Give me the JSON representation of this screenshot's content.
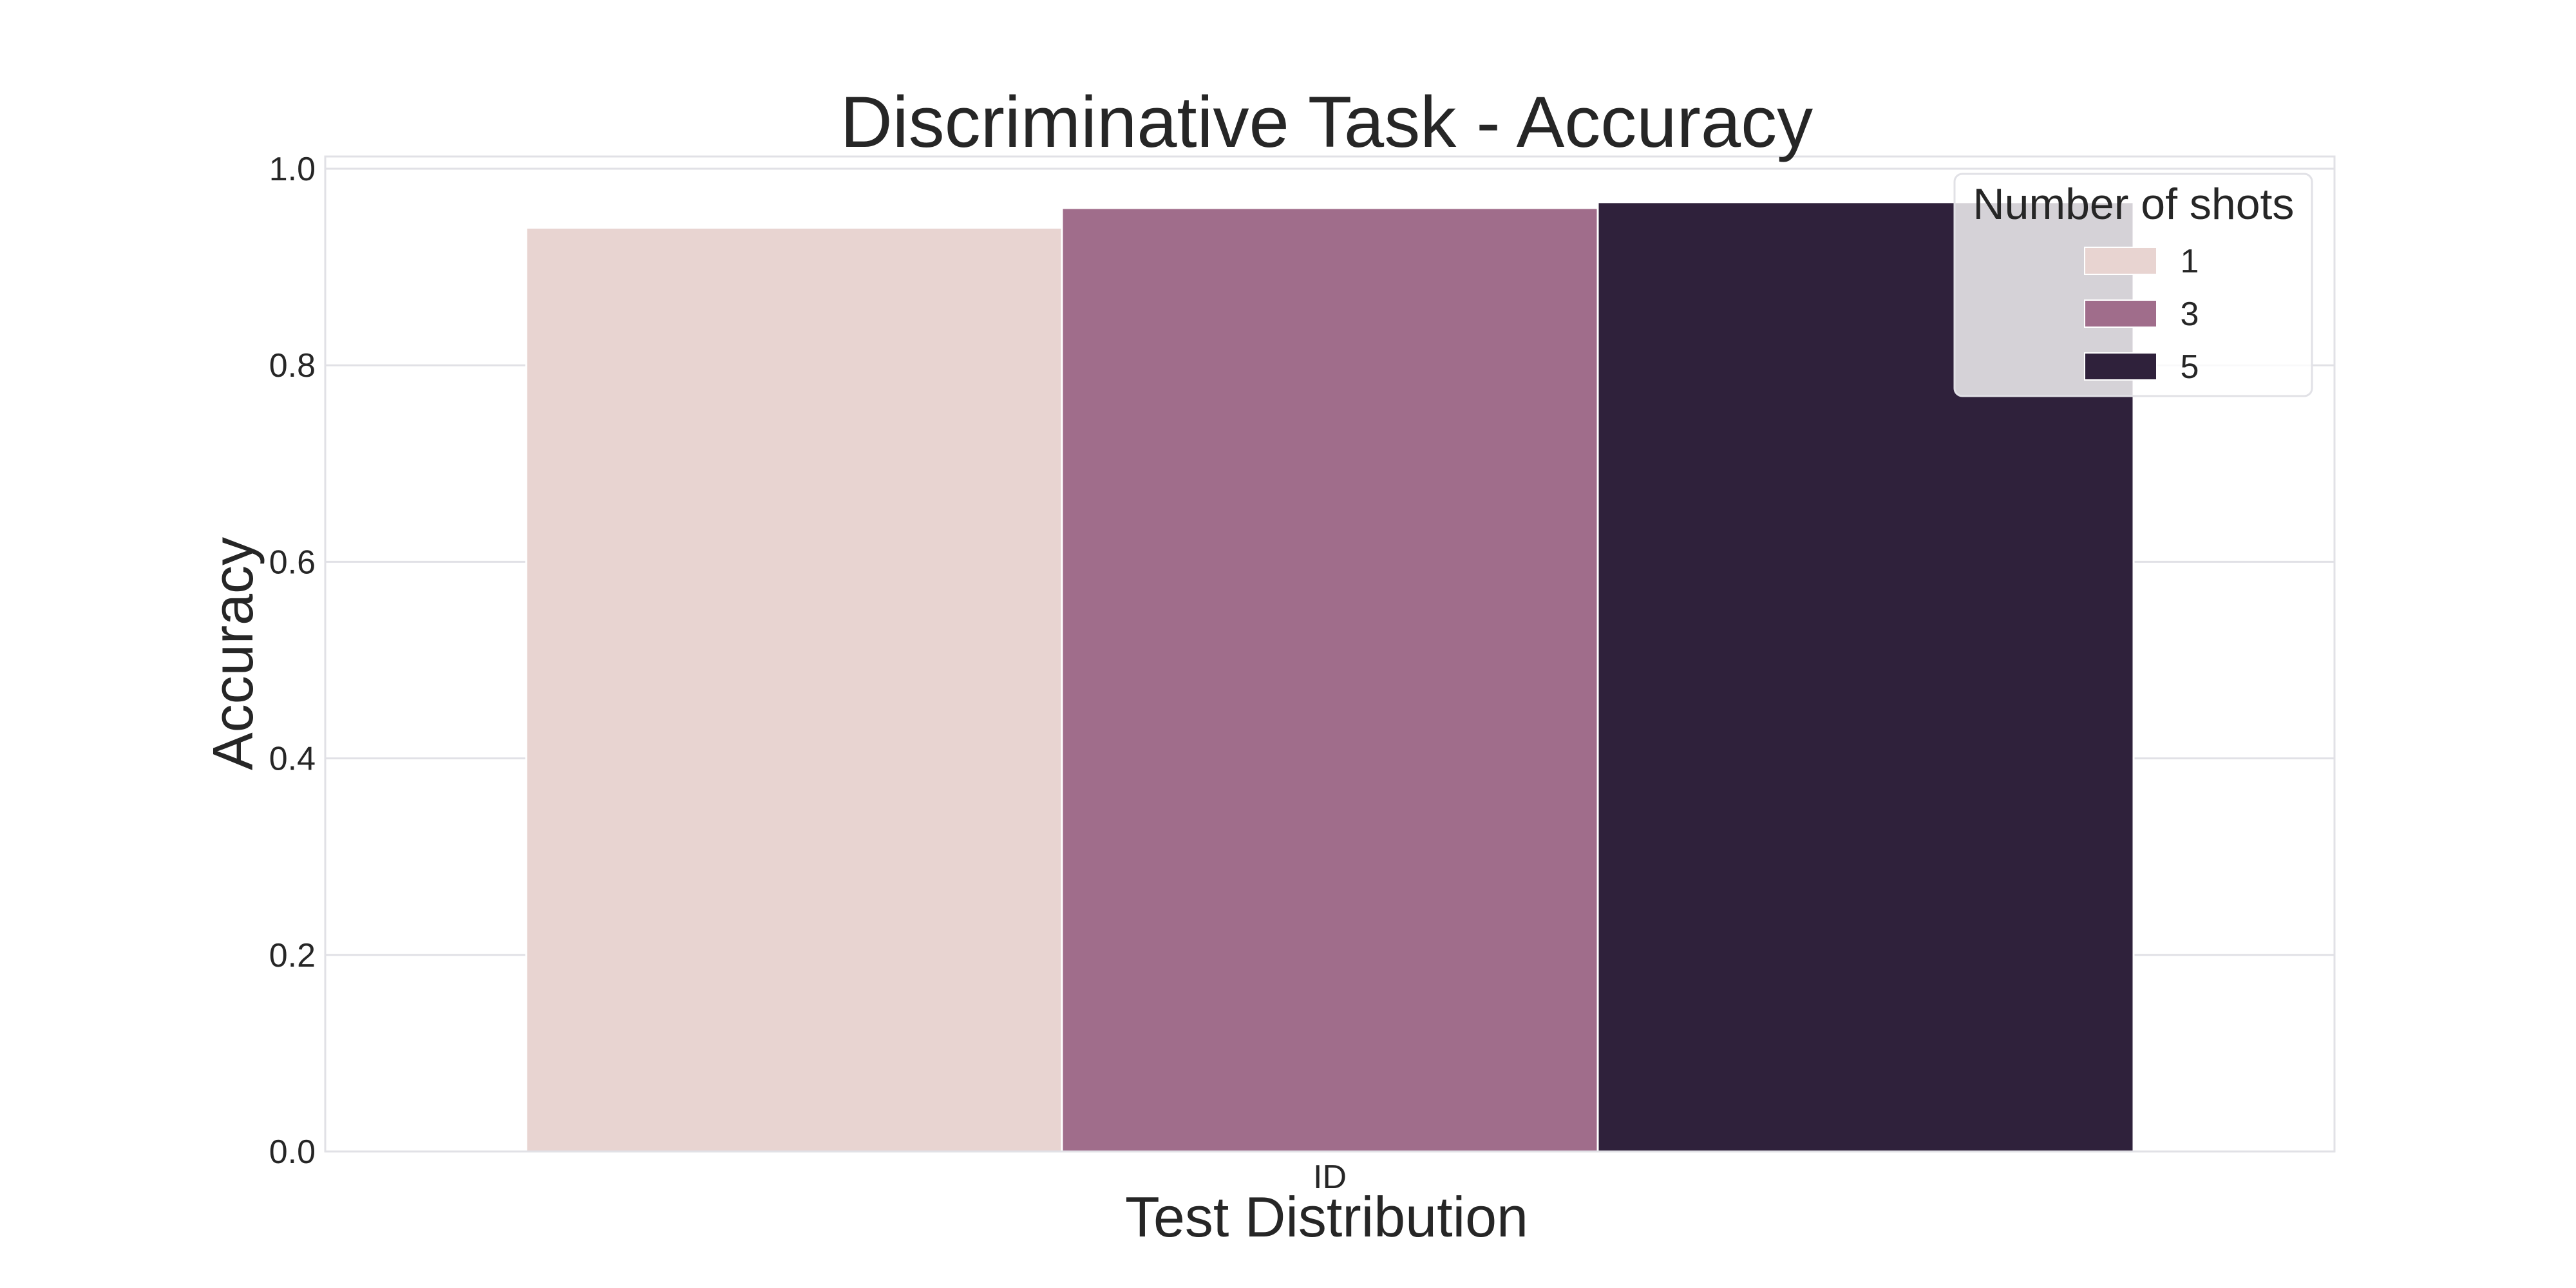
{
  "chart_data": {
    "type": "bar",
    "title": "Discriminative Task - Accuracy",
    "xlabel": "Test Distribution",
    "ylabel": "Accuracy",
    "categories": [
      "ID"
    ],
    "series": [
      {
        "name": "1",
        "values": [
          0.94
        ],
        "color": "#e8d4d1"
      },
      {
        "name": "3",
        "values": [
          0.96
        ],
        "color": "#a06d8b"
      },
      {
        "name": "5",
        "values": [
          0.966
        ],
        "color": "#2f213b"
      }
    ],
    "ylim": [
      0,
      1.0
    ],
    "yticks": [
      "0.0",
      "0.2",
      "0.4",
      "0.6",
      "0.8",
      "1.0"
    ],
    "legend": {
      "title": "Number of shots",
      "placement": "top-right"
    },
    "grid": "horizontal"
  }
}
